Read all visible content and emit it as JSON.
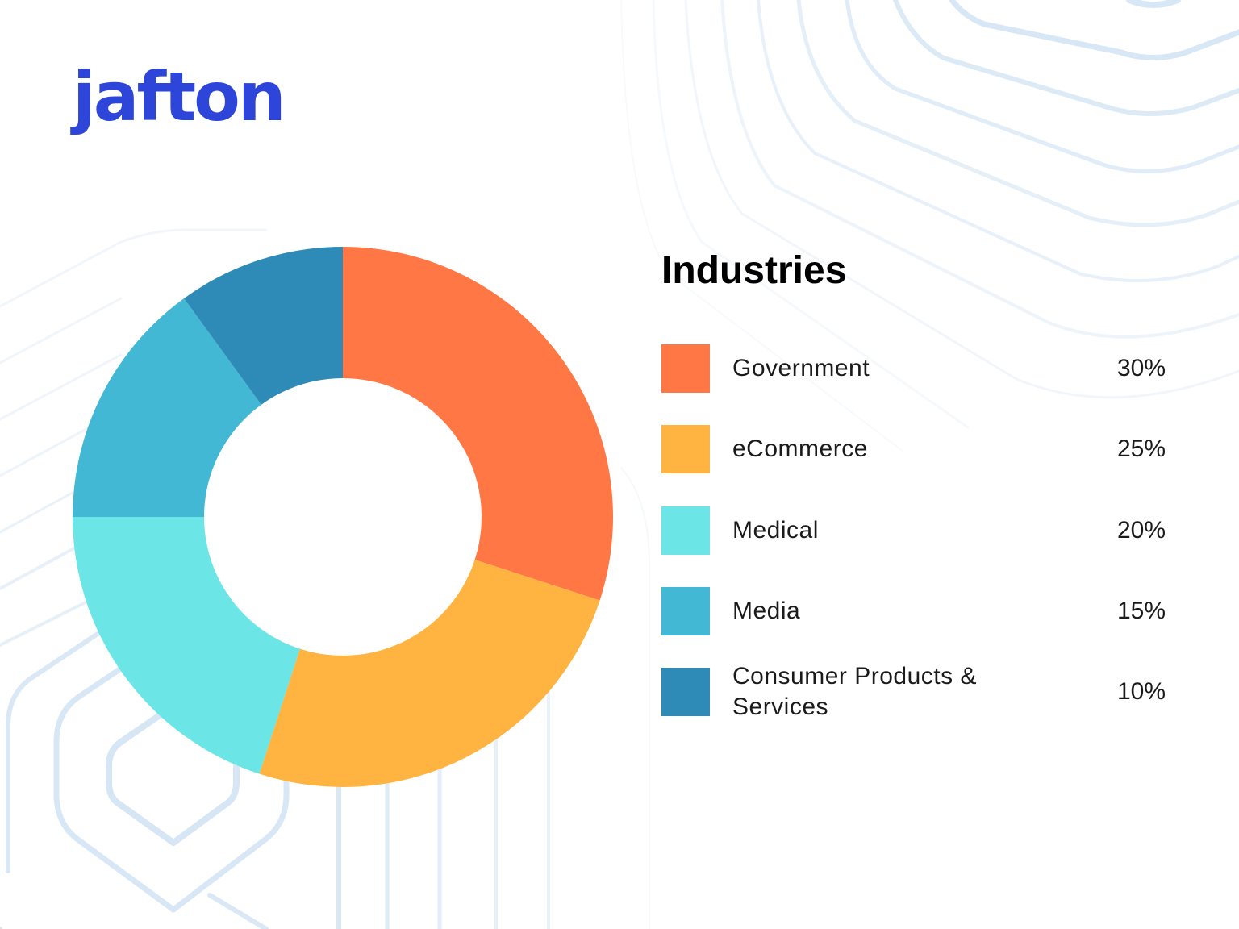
{
  "brand": {
    "logo_text": "jafton",
    "color": "#2d45d9"
  },
  "legend": {
    "title": "Industries",
    "items": [
      {
        "label": "Government",
        "value": "30%",
        "color": "#ff7744"
      },
      {
        "label": "eCommerce",
        "value": "25%",
        "color": "#ffb442"
      },
      {
        "label": "Medical",
        "value": "20%",
        "color": "#6ce5e6"
      },
      {
        "label": "Media",
        "value": "15%",
        "color": "#42b8d5"
      },
      {
        "label": "Consumer Products & Services",
        "value": "10%",
        "color": "#2e8ab7"
      }
    ]
  },
  "chart_data": {
    "type": "pie",
    "subtype": "donut",
    "title": "Industries",
    "categories": [
      "Government",
      "eCommerce",
      "Medical",
      "Media",
      "Consumer Products & Services"
    ],
    "values": [
      30,
      25,
      20,
      15,
      10
    ],
    "unit": "%",
    "colors": [
      "#ff7744",
      "#ffb442",
      "#6ce5e6",
      "#42b8d5",
      "#2e8ab7"
    ],
    "start_angle": "12 o'clock",
    "direction": "clockwise",
    "legend_position": "right"
  }
}
